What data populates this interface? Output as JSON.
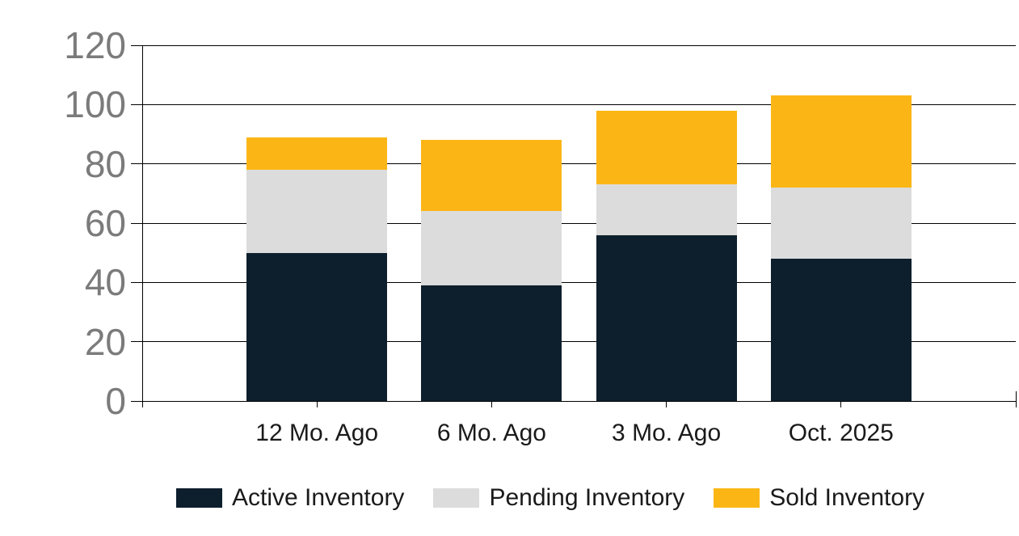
{
  "colors": {
    "background": "#FFFFFF",
    "axis": "#000000",
    "gridline": "#000000",
    "y_label": "#7B7B7B",
    "x_label": "#1A1A1A",
    "legend_text": "#1A1A1A",
    "active": "#0D1F2D",
    "pending": "#DCDCDC",
    "sold": "#FBB616"
  },
  "chart_data": {
    "type": "bar",
    "stacked": true,
    "title": "",
    "xlabel": "",
    "ylabel": "",
    "categories": [
      "12 Mo. Ago",
      "6 Mo. Ago",
      "3 Mo. Ago",
      "Oct. 2025"
    ],
    "series": [
      {
        "name": "Active Inventory",
        "color": "#0D1F2D",
        "values": [
          50,
          39,
          56,
          48
        ]
      },
      {
        "name": "Pending Inventory",
        "color": "#DCDCDC",
        "values": [
          28,
          25,
          17,
          24
        ]
      },
      {
        "name": "Sold Inventory",
        "color": "#FBB616",
        "values": [
          11,
          24,
          25,
          31
        ]
      }
    ],
    "stack_totals": [
      89,
      88,
      98,
      103
    ],
    "ylim": [
      0,
      120
    ],
    "yticks": [
      0,
      20,
      40,
      60,
      80,
      100,
      120
    ],
    "ytick_interval": 20,
    "grid": "horizontal",
    "legend_position": "bottom"
  }
}
